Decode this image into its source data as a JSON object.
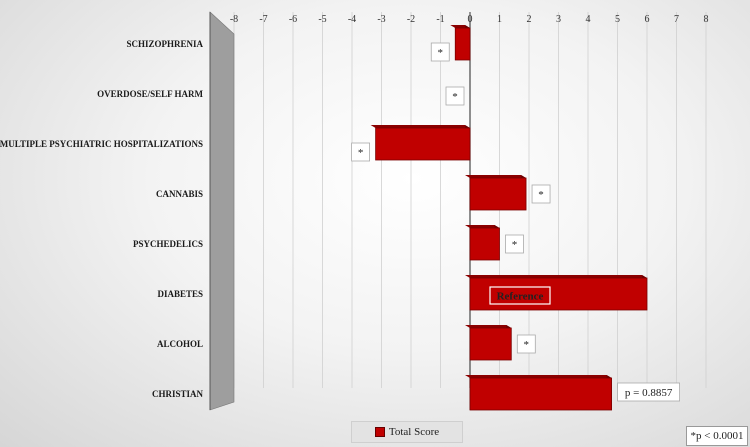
{
  "chart_data": {
    "type": "bar",
    "orientation": "horizontal",
    "categories": [
      "SCHIZOPHRENIA",
      "OVERDOSE/SELF HARM",
      "MULTIPLE PSYCHIATRIC HOSPITALIZATIONS",
      "CANNABIS",
      "PSYCHEDELICS",
      "DIABETES",
      "ALCOHOL",
      "CHRISTIAN"
    ],
    "series": [
      {
        "name": "Total Score",
        "values": [
          -0.5,
          0,
          -3.2,
          1.9,
          1.0,
          6.0,
          1.4,
          4.8
        ]
      }
    ],
    "annotations": [
      "*",
      "*",
      "*",
      "*",
      "*",
      "Reference",
      "*",
      "p = 0.8857"
    ],
    "xticks": [
      "-8",
      "-7",
      "-6",
      "-5",
      "-4",
      "-3",
      "-2",
      "-1",
      "0",
      "1",
      "2",
      "3",
      "4",
      "5",
      "6",
      "7",
      "8"
    ],
    "xlim": [
      -8,
      8
    ],
    "legend": "bottom",
    "footnote": "*p < 0.0001",
    "colors": {
      "bar": "#c00000",
      "bar_dark": "#6b0000",
      "bar_top": "#8b0000"
    }
  }
}
